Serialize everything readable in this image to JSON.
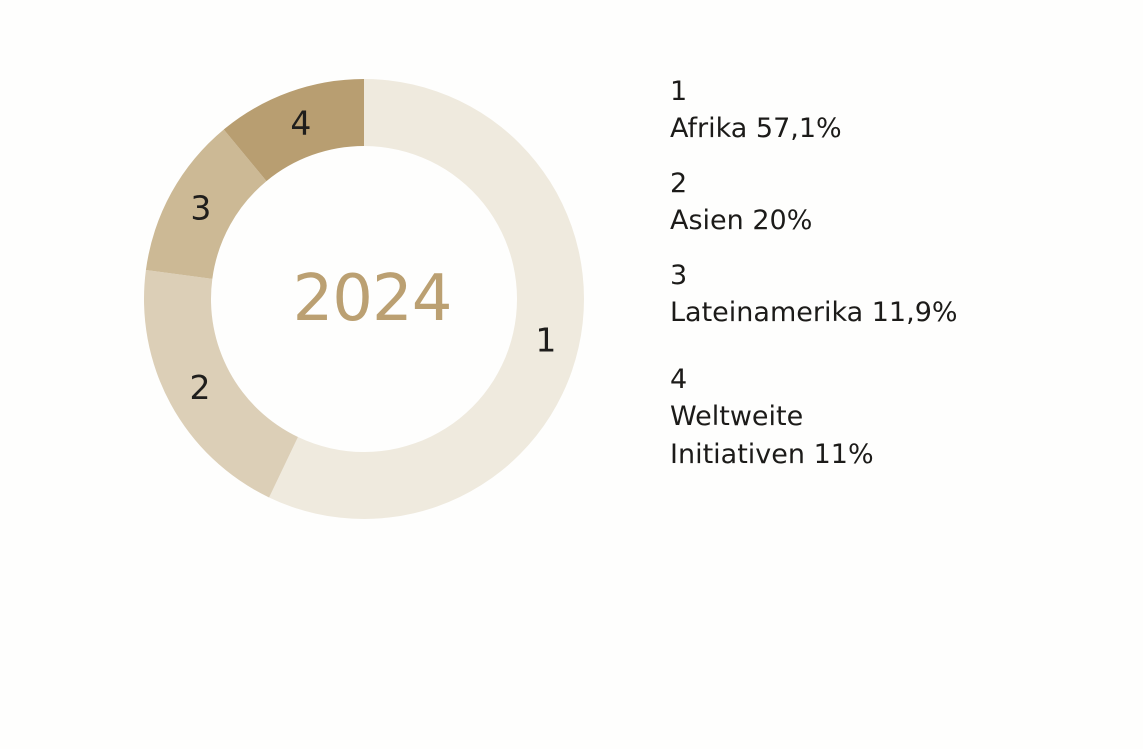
{
  "chart_data": {
    "type": "pie",
    "center_label": "2024",
    "slices": [
      {
        "id": "1",
        "name": "Afrika",
        "value": 57.1,
        "legend_text": "Afrika 57,1%",
        "color": "#efeade"
      },
      {
        "id": "2",
        "name": "Asien",
        "value": 20,
        "legend_text": "Asien 20%",
        "color": "#dccfb7"
      },
      {
        "id": "3",
        "name": "Lateinamerika",
        "value": 11.9,
        "legend_text": "Lateinamerika 11,9%",
        "color": "#ccb995"
      },
      {
        "id": "4",
        "name": "Weltweite Initiativen",
        "value": 11,
        "legend_text": "Weltweite Initiativen 11%",
        "color": "#b89e71"
      }
    ],
    "start": "top",
    "direction": "clockwise",
    "legend_position": "right"
  },
  "colors": {
    "center_label": "#bba072",
    "label_text": "#1f1e1c",
    "background": "#fefefd"
  }
}
